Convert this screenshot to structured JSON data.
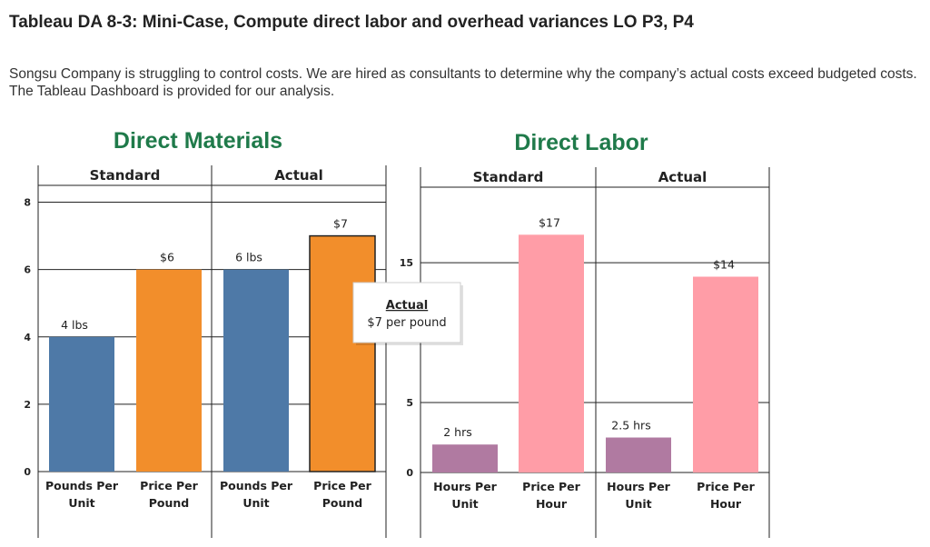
{
  "page": {
    "title": "Tableau DA 8-3: Mini-Case, Compute direct labor and overhead variances LO P3, P4",
    "intro": "Songsu Company is struggling to control costs. We are hired as consultants to determine why the company’s actual costs exceed budgeted costs. The Tableau Dashboard is provided for our analysis."
  },
  "colors": {
    "dm_quantity": "#4e79a7",
    "dm_price": "#f28e2b",
    "dl_hours": "#b07aa1",
    "dl_price": "#ff9da7",
    "panel_title": "#1f7a4a"
  },
  "tooltip": {
    "title": "Actual",
    "body": "$7 per pound"
  },
  "chart_data": [
    {
      "type": "bar",
      "title": "Direct Materials",
      "ylim": [
        0,
        8.5
      ],
      "yticks": [
        "0",
        "2",
        "4",
        "6",
        "8"
      ],
      "ytick_values": [
        0,
        2,
        4,
        6,
        8
      ],
      "groups": [
        {
          "name": "Standard",
          "bars": [
            {
              "category": "Pounds Per Unit",
              "line1": "Pounds Per",
              "line2": "Unit",
              "value": 4,
              "label": "4 lbs",
              "kind": "quantity"
            },
            {
              "category": "Price Per Pound",
              "line1": "Price Per",
              "line2": "Pound",
              "value": 6,
              "label": "$6",
              "kind": "price"
            }
          ]
        },
        {
          "name": "Actual",
          "bars": [
            {
              "category": "Pounds Per Unit",
              "line1": "Pounds Per",
              "line2": "Unit",
              "value": 6,
              "label": "6 lbs",
              "kind": "quantity"
            },
            {
              "category": "Price Per Pound",
              "line1": "Price Per",
              "line2": "Pound",
              "value": 7,
              "label": "$7",
              "kind": "price",
              "highlighted": true
            }
          ]
        }
      ]
    },
    {
      "type": "bar",
      "title": "Direct Labor",
      "ylim": [
        0,
        20.4
      ],
      "yticks": [
        "0",
        "5",
        "15"
      ],
      "ytick_values": [
        0,
        5,
        15
      ],
      "groups": [
        {
          "name": "Standard",
          "bars": [
            {
              "category": "Hours Per Unit",
              "line1": "Hours Per",
              "line2": "Unit",
              "value": 2,
              "label": "2 hrs",
              "kind": "hours"
            },
            {
              "category": "Price Per Hour",
              "line1": "Price Per",
              "line2": "Hour",
              "value": 17,
              "label": "$17",
              "kind": "rate"
            }
          ]
        },
        {
          "name": "Actual",
          "bars": [
            {
              "category": "Hours Per Unit",
              "line1": "Hours Per",
              "line2": "Unit",
              "value": 2.5,
              "label": "2.5 hrs",
              "kind": "hours"
            },
            {
              "category": "Price Per Hour",
              "line1": "Price Per",
              "line2": "Hour",
              "value": 14,
              "label": "$14",
              "kind": "rate"
            }
          ]
        }
      ]
    }
  ]
}
